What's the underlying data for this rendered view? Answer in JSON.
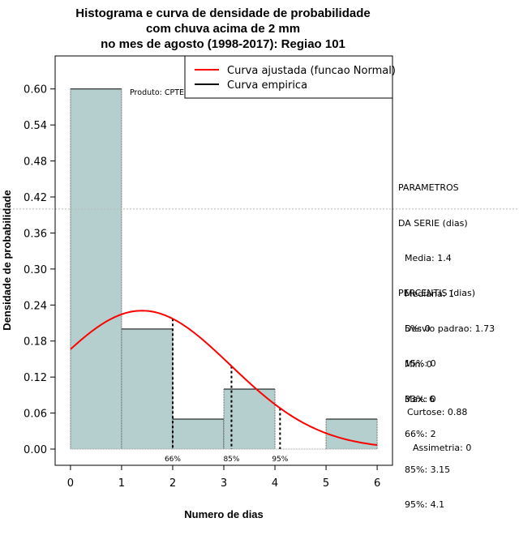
{
  "chart_data": {
    "type": "bar",
    "title_lines": [
      "Histograma e curva de densidade de probabilidade",
      "com chuva acima de 2 mm",
      "no mes de agosto (1998-2017): Regiao 101"
    ],
    "xlabel": "Numero de dias",
    "ylabel": "Densidade de probabilidade",
    "xlim": [
      -0.3,
      6.3
    ],
    "ylim": [
      -0.027,
      0.655
    ],
    "xticks": [
      0,
      1,
      2,
      3,
      4,
      5,
      6
    ],
    "yticks": [
      "0.00",
      "0.06",
      "0.12",
      "0.18",
      "0.24",
      "0.30",
      "0.36",
      "0.42",
      "0.48",
      "0.54",
      "0.60"
    ],
    "bins": [
      {
        "x0": 0,
        "x1": 1,
        "value": 0.6
      },
      {
        "x0": 1,
        "x1": 2,
        "value": 0.2
      },
      {
        "x0": 2,
        "x1": 3,
        "value": 0.05
      },
      {
        "x0": 3,
        "x1": 4,
        "value": 0.1
      },
      {
        "x0": 4,
        "x1": 5,
        "value": 0.0
      },
      {
        "x0": 5,
        "x1": 6,
        "value": 0.05
      }
    ],
    "normal_curve": {
      "mean": 1.4,
      "sd": 1.73,
      "x_from": 0,
      "x_to": 6
    },
    "hline_y": 0.4,
    "percentile_lines": [
      {
        "label": "66%",
        "x": 2.0
      },
      {
        "label": "85%",
        "x": 3.15
      },
      {
        "label": "95%",
        "x": 4.1
      }
    ],
    "product_text": "Produto: CPTEC/INPE",
    "legend": {
      "position": "top-right",
      "items": [
        {
          "label": "Curva ajustada (funcao Normal)",
          "color": "#ff0000"
        },
        {
          "label": "Curva empirica",
          "color": "#000000"
        }
      ]
    },
    "colors": {
      "bar_fill": "#b5cece",
      "curve": "#ff0000",
      "axis": "#000000",
      "grid": "#bbbbbb"
    }
  },
  "stats": {
    "params_title": [
      "PARAMETROS",
      "DA SERIE (dias)"
    ],
    "params": [
      "Media: 1.4",
      "Mediana: 1",
      "Desvio padrao: 1.73",
      "Min: 0",
      "Max: 6"
    ],
    "percentis_title": "PERCENTIS (dias)",
    "percentis": [
      "5%: 0",
      "15%: 0",
      "33%: 0",
      "66%: 2",
      "85%: 3.15",
      "95%: 4.1"
    ],
    "curtose": "Curtose: 0.88",
    "assimetria": "Assimetria: 0"
  }
}
